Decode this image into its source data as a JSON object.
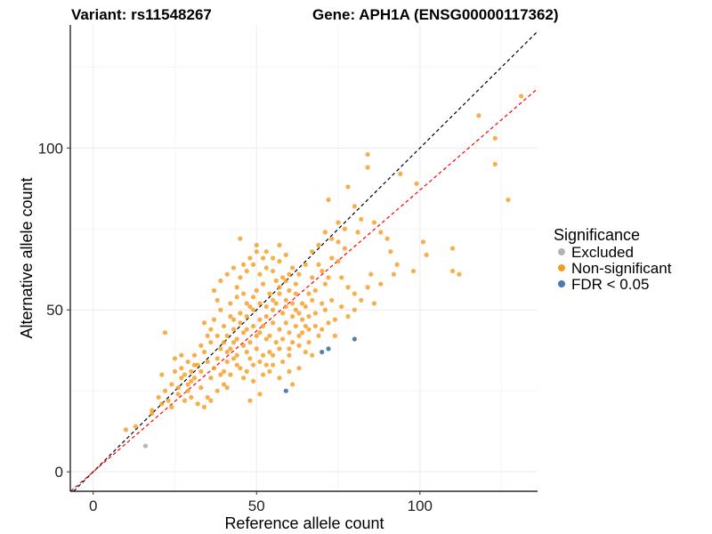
{
  "chart_data": {
    "type": "scatter",
    "title_left": "Variant: rs11548267",
    "title_right": "Gene: APH1A (ENSG00000117362)",
    "xlabel": "Reference allele count",
    "ylabel": "Alternative allele count",
    "xlim": [
      -7,
      136
    ],
    "ylim": [
      -6,
      138
    ],
    "xticks": [
      0,
      50,
      100
    ],
    "yticks": [
      0,
      50,
      100
    ],
    "grid": true,
    "legend": {
      "title": "Significance",
      "position": "right",
      "entries": [
        {
          "label": "Excluded",
          "color": "#b3b3b3"
        },
        {
          "label": "Non-significant",
          "color": "#f59a1e"
        },
        {
          "label": "FDR < 0.05",
          "color": "#4a7aab"
        }
      ]
    },
    "reference_lines": [
      {
        "name": "identity",
        "slope": 1.0,
        "intercept": 0,
        "color": "#000000",
        "dash": true
      },
      {
        "name": "fit",
        "slope": 0.87,
        "intercept": 0,
        "color": "#ff0000",
        "dash": true
      }
    ],
    "series": [
      {
        "name": "Excluded",
        "color": "#b3b3b3",
        "points": [
          [
            16,
            8
          ]
        ]
      },
      {
        "name": "FDR < 0.05",
        "color": "#4a7aab",
        "points": [
          [
            59,
            25
          ],
          [
            70,
            37
          ],
          [
            72,
            38
          ],
          [
            80,
            41
          ]
        ]
      },
      {
        "name": "Non-significant",
        "color": "#f59a1e",
        "points": [
          [
            131,
            116
          ],
          [
            118,
            110
          ],
          [
            123,
            103
          ],
          [
            123,
            95
          ],
          [
            127,
            84
          ],
          [
            94,
            92
          ],
          [
            99,
            89
          ],
          [
            84,
            98
          ],
          [
            84,
            94
          ],
          [
            102,
            67
          ],
          [
            101,
            71
          ],
          [
            110,
            69
          ],
          [
            110,
            62
          ],
          [
            112,
            61
          ],
          [
            92,
            61
          ],
          [
            91,
            68
          ],
          [
            82,
            78
          ],
          [
            78,
            88
          ],
          [
            86,
            77
          ],
          [
            75,
            71
          ],
          [
            85,
            61
          ],
          [
            80,
            82
          ],
          [
            72,
            84
          ],
          [
            90,
            72
          ],
          [
            88,
            74
          ],
          [
            93,
            64
          ],
          [
            98,
            62
          ],
          [
            81,
            74
          ],
          [
            72,
            60
          ],
          [
            22,
            43
          ],
          [
            25,
            35
          ],
          [
            27,
            36
          ],
          [
            33,
            39
          ],
          [
            31,
            29
          ],
          [
            29,
            25
          ],
          [
            21,
            30
          ],
          [
            21,
            21
          ],
          [
            23,
            22
          ],
          [
            18,
            19
          ],
          [
            18,
            18
          ],
          [
            24,
            20
          ],
          [
            27,
            32
          ],
          [
            10,
            13
          ],
          [
            13,
            14
          ],
          [
            38,
            53
          ],
          [
            44,
            57
          ],
          [
            45,
            72
          ],
          [
            50,
            68
          ],
          [
            52,
            66
          ],
          [
            57,
            65
          ],
          [
            60,
            56
          ],
          [
            36,
            29
          ],
          [
            41,
            26
          ],
          [
            48,
            22
          ],
          [
            51,
            24
          ],
          [
            46,
            29
          ],
          [
            54,
            31
          ],
          [
            63,
            32
          ],
          [
            66,
            40
          ],
          [
            68,
            49
          ],
          [
            65,
            45
          ],
          [
            62,
            58
          ],
          [
            70,
            62
          ],
          [
            75,
            65
          ],
          [
            77,
            69
          ],
          [
            40,
            45
          ],
          [
            42,
            48
          ],
          [
            43,
            40
          ],
          [
            47,
            44
          ],
          [
            49,
            50
          ],
          [
            51,
            47
          ],
          [
            53,
            41
          ],
          [
            55,
            46
          ],
          [
            56,
            52
          ],
          [
            58,
            49
          ],
          [
            59,
            53
          ],
          [
            60,
            43
          ],
          [
            61,
            48
          ],
          [
            62,
            50
          ],
          [
            39,
            38
          ],
          [
            41,
            34
          ],
          [
            44,
            36
          ],
          [
            46,
            39
          ],
          [
            48,
            35
          ],
          [
            50,
            38
          ],
          [
            52,
            36
          ],
          [
            54,
            42
          ],
          [
            57,
            38
          ],
          [
            58,
            34
          ],
          [
            60,
            36
          ],
          [
            63,
            42
          ],
          [
            64,
            47
          ],
          [
            66,
            44
          ],
          [
            35,
            42
          ],
          [
            37,
            47
          ],
          [
            39,
            50
          ],
          [
            42,
            52
          ],
          [
            44,
            54
          ],
          [
            46,
            55
          ],
          [
            48,
            51
          ],
          [
            50,
            56
          ],
          [
            52,
            58
          ],
          [
            54,
            55
          ],
          [
            56,
            59
          ],
          [
            58,
            60
          ],
          [
            60,
            61
          ],
          [
            62,
            55
          ],
          [
            32,
            33
          ],
          [
            34,
            37
          ],
          [
            36,
            40
          ],
          [
            38,
            35
          ],
          [
            40,
            31
          ],
          [
            42,
            30
          ],
          [
            44,
            33
          ],
          [
            47,
            31
          ],
          [
            49,
            28
          ],
          [
            52,
            30
          ],
          [
            55,
            33
          ],
          [
            57,
            29
          ],
          [
            60,
            31
          ],
          [
            61,
            27
          ],
          [
            64,
            52
          ],
          [
            66,
            55
          ],
          [
            68,
            56
          ],
          [
            70,
            52
          ],
          [
            71,
            50
          ],
          [
            73,
            53
          ],
          [
            74,
            47
          ],
          [
            67,
            60
          ],
          [
            69,
            64
          ],
          [
            71,
            58
          ],
          [
            73,
            66
          ],
          [
            76,
            60
          ],
          [
            78,
            57
          ],
          [
            80,
            55
          ],
          [
            30,
            28
          ],
          [
            28,
            30
          ],
          [
            26,
            26
          ],
          [
            33,
            26
          ],
          [
            35,
            23
          ],
          [
            38,
            25
          ],
          [
            40,
            27
          ],
          [
            43,
            44
          ],
          [
            45,
            46
          ],
          [
            47,
            48
          ],
          [
            49,
            45
          ],
          [
            51,
            43
          ],
          [
            53,
            48
          ],
          [
            55,
            50
          ],
          [
            57,
            44
          ],
          [
            59,
            46
          ],
          [
            61,
            40
          ],
          [
            63,
            39
          ],
          [
            65,
            37
          ],
          [
            67,
            36
          ],
          [
            69,
            42
          ],
          [
            37,
            56
          ],
          [
            39,
            59
          ],
          [
            41,
            61
          ],
          [
            43,
            63
          ],
          [
            45,
            60
          ],
          [
            47,
            62
          ],
          [
            49,
            64
          ],
          [
            51,
            61
          ],
          [
            53,
            63
          ],
          [
            55,
            62
          ],
          [
            57,
            57
          ],
          [
            59,
            59
          ],
          [
            61,
            63
          ],
          [
            63,
            61
          ],
          [
            34,
            46
          ],
          [
            36,
            44
          ],
          [
            38,
            42
          ],
          [
            40,
            40
          ],
          [
            42,
            38
          ],
          [
            44,
            41
          ],
          [
            46,
            43
          ],
          [
            48,
            40
          ],
          [
            50,
            42
          ],
          [
            52,
            45
          ],
          [
            54,
            37
          ],
          [
            56,
            40
          ],
          [
            58,
            41
          ],
          [
            60,
            38
          ],
          [
            29,
            34
          ],
          [
            31,
            36
          ],
          [
            33,
            31
          ],
          [
            35,
            34
          ],
          [
            37,
            32
          ],
          [
            39,
            30
          ],
          [
            41,
            37
          ],
          [
            43,
            35
          ],
          [
            45,
            32
          ],
          [
            47,
            37
          ],
          [
            49,
            33
          ],
          [
            51,
            34
          ],
          [
            53,
            33
          ],
          [
            55,
            36
          ],
          [
            62,
            45
          ],
          [
            64,
            43
          ],
          [
            66,
            48
          ],
          [
            68,
            45
          ],
          [
            70,
            44
          ],
          [
            72,
            46
          ],
          [
            74,
            42
          ],
          [
            76,
            51
          ],
          [
            78,
            48
          ],
          [
            80,
            50
          ],
          [
            82,
            53
          ],
          [
            84,
            57
          ],
          [
            86,
            52
          ],
          [
            88,
            58
          ],
          [
            50,
            70
          ],
          [
            48,
            66
          ],
          [
            46,
            64
          ],
          [
            53,
            68
          ],
          [
            55,
            66
          ],
          [
            57,
            70
          ],
          [
            59,
            67
          ],
          [
            65,
            64
          ],
          [
            67,
            68
          ],
          [
            69,
            70
          ],
          [
            71,
            74
          ],
          [
            73,
            72
          ],
          [
            75,
            77
          ],
          [
            77,
            75
          ],
          [
            41,
            42
          ],
          [
            43,
            47
          ],
          [
            45,
            49
          ],
          [
            47,
            52
          ],
          [
            49,
            54
          ],
          [
            51,
            52
          ],
          [
            53,
            51
          ],
          [
            55,
            53
          ],
          [
            57,
            55
          ],
          [
            59,
            51
          ],
          [
            61,
            52
          ],
          [
            63,
            49
          ],
          [
            65,
            51
          ],
          [
            67,
            53
          ],
          [
            26,
            24
          ],
          [
            28,
            22
          ],
          [
            30,
            23
          ],
          [
            32,
            21
          ],
          [
            34,
            20
          ],
          [
            36,
            22
          ],
          [
            30,
            31
          ],
          [
            24,
            27
          ],
          [
            22,
            25
          ],
          [
            20,
            23
          ],
          [
            25,
            31
          ],
          [
            27,
            29
          ],
          [
            29,
            27
          ],
          [
            31,
            33
          ]
        ]
      }
    ]
  }
}
